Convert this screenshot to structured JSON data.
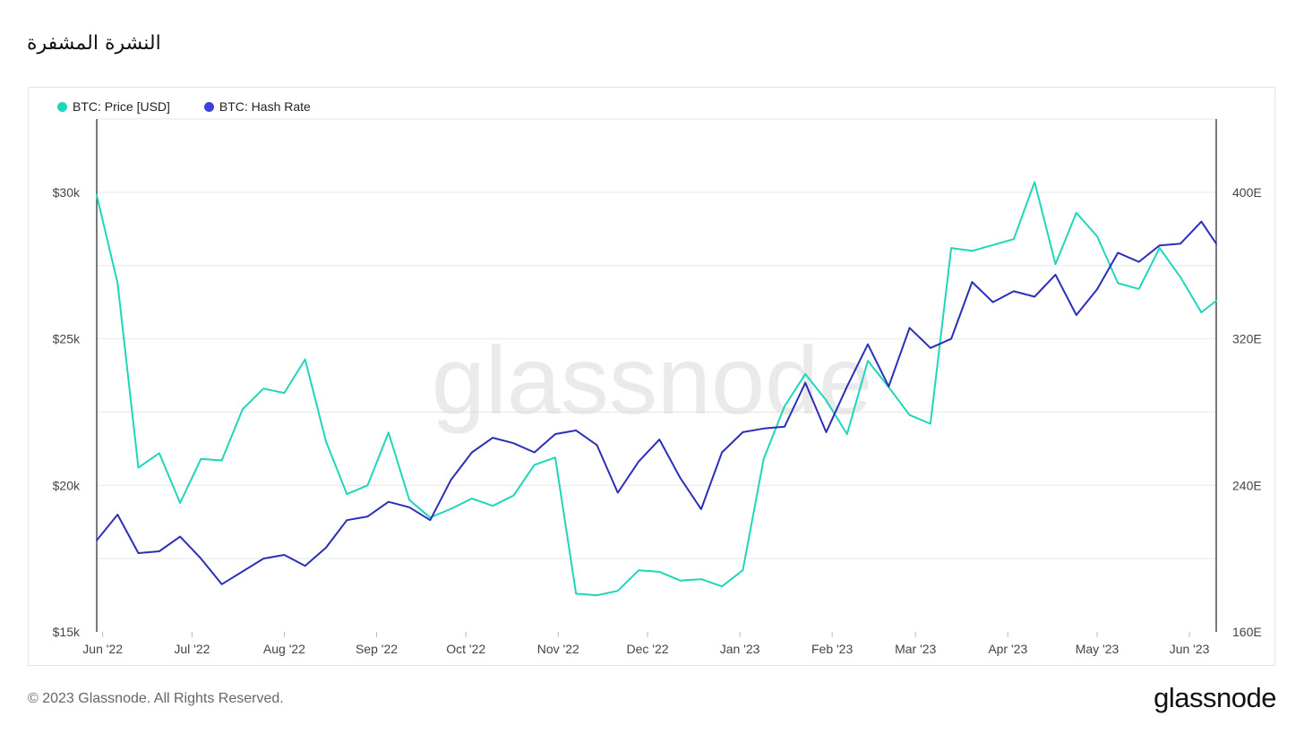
{
  "page": {
    "title": "النشرة المشفرة",
    "copyright": "© 2023 Glassnode. All Rights Reserved.",
    "logo_text": "glassnode",
    "watermark": "glassnode"
  },
  "legend": [
    {
      "label": "BTC: Price [USD]",
      "color": "#1fd6bb"
    },
    {
      "label": "BTC: Hash Rate",
      "color": "#3f40d6"
    }
  ],
  "chart_data": {
    "type": "line",
    "x_axis_ticks": [
      "Jun '22",
      "Jul '22",
      "Aug '22",
      "Sep '22",
      "Oct '22",
      "Nov '22",
      "Dec '22",
      "Jan '23",
      "Feb '23",
      "Mar '23",
      "Apr '23",
      "May '23",
      "Jun '23"
    ],
    "y_left": {
      "ticks": [
        "$15k",
        "$20k",
        "$25k",
        "$30k"
      ],
      "tick_values": [
        15000,
        20000,
        25000,
        30000
      ],
      "range": [
        15000,
        32500
      ]
    },
    "y_right": {
      "ticks": [
        "160E",
        "240E",
        "320E",
        "400E"
      ],
      "tick_values": [
        160,
        240,
        320,
        400
      ],
      "range": [
        160,
        440
      ]
    },
    "x_range": [
      "2022-05-30",
      "2023-06-10"
    ],
    "grid": true,
    "legend_position": "top-left",
    "series": [
      {
        "name": "BTC: Price [USD]",
        "axis": "left",
        "color": "#1fd6bb",
        "x": [
          "2022-05-30",
          "2022-06-06",
          "2022-06-13",
          "2022-06-20",
          "2022-06-27",
          "2022-07-04",
          "2022-07-11",
          "2022-07-18",
          "2022-07-25",
          "2022-08-01",
          "2022-08-08",
          "2022-08-15",
          "2022-08-22",
          "2022-08-29",
          "2022-09-05",
          "2022-09-12",
          "2022-09-19",
          "2022-09-26",
          "2022-10-03",
          "2022-10-10",
          "2022-10-17",
          "2022-10-24",
          "2022-10-31",
          "2022-11-07",
          "2022-11-14",
          "2022-11-21",
          "2022-11-28",
          "2022-12-05",
          "2022-12-12",
          "2022-12-19",
          "2022-12-26",
          "2023-01-02",
          "2023-01-09",
          "2023-01-16",
          "2023-01-23",
          "2023-01-30",
          "2023-02-06",
          "2023-02-13",
          "2023-02-20",
          "2023-02-27",
          "2023-03-06",
          "2023-03-13",
          "2023-03-20",
          "2023-03-27",
          "2023-04-03",
          "2023-04-10",
          "2023-04-17",
          "2023-04-24",
          "2023-05-01",
          "2023-05-08",
          "2023-05-15",
          "2023-05-22",
          "2023-05-29",
          "2023-06-05",
          "2023-06-10"
        ],
        "y": [
          29900,
          26900,
          20600,
          21100,
          19400,
          20900,
          20850,
          22600,
          23300,
          23150,
          24300,
          21500,
          19700,
          20000,
          21800,
          19500,
          18900,
          19200,
          19550,
          19300,
          19650,
          20700,
          20950,
          16300,
          16250,
          16400,
          17100,
          17050,
          16750,
          16800,
          16550,
          17100,
          20900,
          22700,
          23800,
          22900,
          21750,
          24250,
          23350,
          22400,
          22100,
          28100,
          28000,
          28200,
          28400,
          30350,
          27550,
          29300,
          28500,
          26900,
          26700,
          28100,
          27100,
          25900,
          26300
        ]
      },
      {
        "name": "BTC: Hash Rate",
        "axis": "right",
        "color": "#2b2fb8",
        "x": [
          "2022-05-30",
          "2022-06-06",
          "2022-06-13",
          "2022-06-20",
          "2022-06-27",
          "2022-07-04",
          "2022-07-11",
          "2022-07-18",
          "2022-07-25",
          "2022-08-01",
          "2022-08-08",
          "2022-08-15",
          "2022-08-22",
          "2022-08-29",
          "2022-09-05",
          "2022-09-12",
          "2022-09-19",
          "2022-09-26",
          "2022-10-03",
          "2022-10-10",
          "2022-10-17",
          "2022-10-24",
          "2022-10-31",
          "2022-11-07",
          "2022-11-14",
          "2022-11-21",
          "2022-11-28",
          "2022-12-05",
          "2022-12-12",
          "2022-12-19",
          "2022-12-26",
          "2023-01-02",
          "2023-01-09",
          "2023-01-16",
          "2023-01-23",
          "2023-01-30",
          "2023-02-06",
          "2023-02-13",
          "2023-02-20",
          "2023-02-27",
          "2023-03-06",
          "2023-03-13",
          "2023-03-20",
          "2023-03-27",
          "2023-04-03",
          "2023-04-10",
          "2023-04-17",
          "2023-04-24",
          "2023-05-01",
          "2023-05-08",
          "2023-05-15",
          "2023-05-22",
          "2023-05-29",
          "2023-06-05",
          "2023-06-10"
        ],
        "y": [
          210,
          224,
          203,
          204,
          212,
          200,
          186,
          193,
          200,
          202,
          196,
          206,
          221,
          223,
          231,
          228,
          221,
          243,
          258,
          266,
          263,
          258,
          268,
          270,
          262,
          236,
          253,
          265,
          244,
          227,
          258,
          269,
          271,
          272,
          296,
          269,
          294,
          317,
          294,
          326,
          315,
          320,
          351,
          340,
          346,
          343,
          355,
          333,
          347,
          367,
          362,
          371,
          372,
          384,
          372
        ]
      }
    ]
  }
}
